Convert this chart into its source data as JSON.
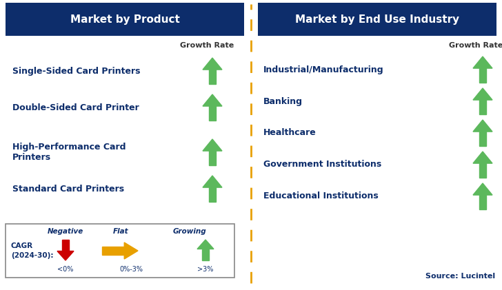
{
  "left_title": "Market by Product",
  "right_title": "Market by End Use Industry",
  "left_items": [
    "Single-Sided Card Printers",
    "Double-Sided Card Printer",
    "High-Performance Card\nPrinters",
    "Standard Card Printers"
  ],
  "right_items": [
    "Industrial/Manufacturing",
    "Banking",
    "Healthcare",
    "Government Institutions",
    "Educational Institutions"
  ],
  "header_bg": "#0d2d6b",
  "header_text": "#ffffff",
  "item_text_color": "#0d2d6b",
  "growth_rate_color": "#333333",
  "arrow_up_color": "#5cb85c",
  "arrow_down_color": "#cc0000",
  "arrow_flat_color": "#e8a000",
  "dashed_line_color": "#e8a000",
  "source_text": "Source: Lucintel",
  "cagr_label": "CAGR\n(2024-30):",
  "legend_negative_label": "Negative",
  "legend_negative_range": "<0%",
  "legend_flat_label": "Flat",
  "legend_flat_range": "0%-3%",
  "legend_growing_label": "Growing",
  "legend_growing_range": ">3%",
  "growth_rate_label": "Growth Rate"
}
